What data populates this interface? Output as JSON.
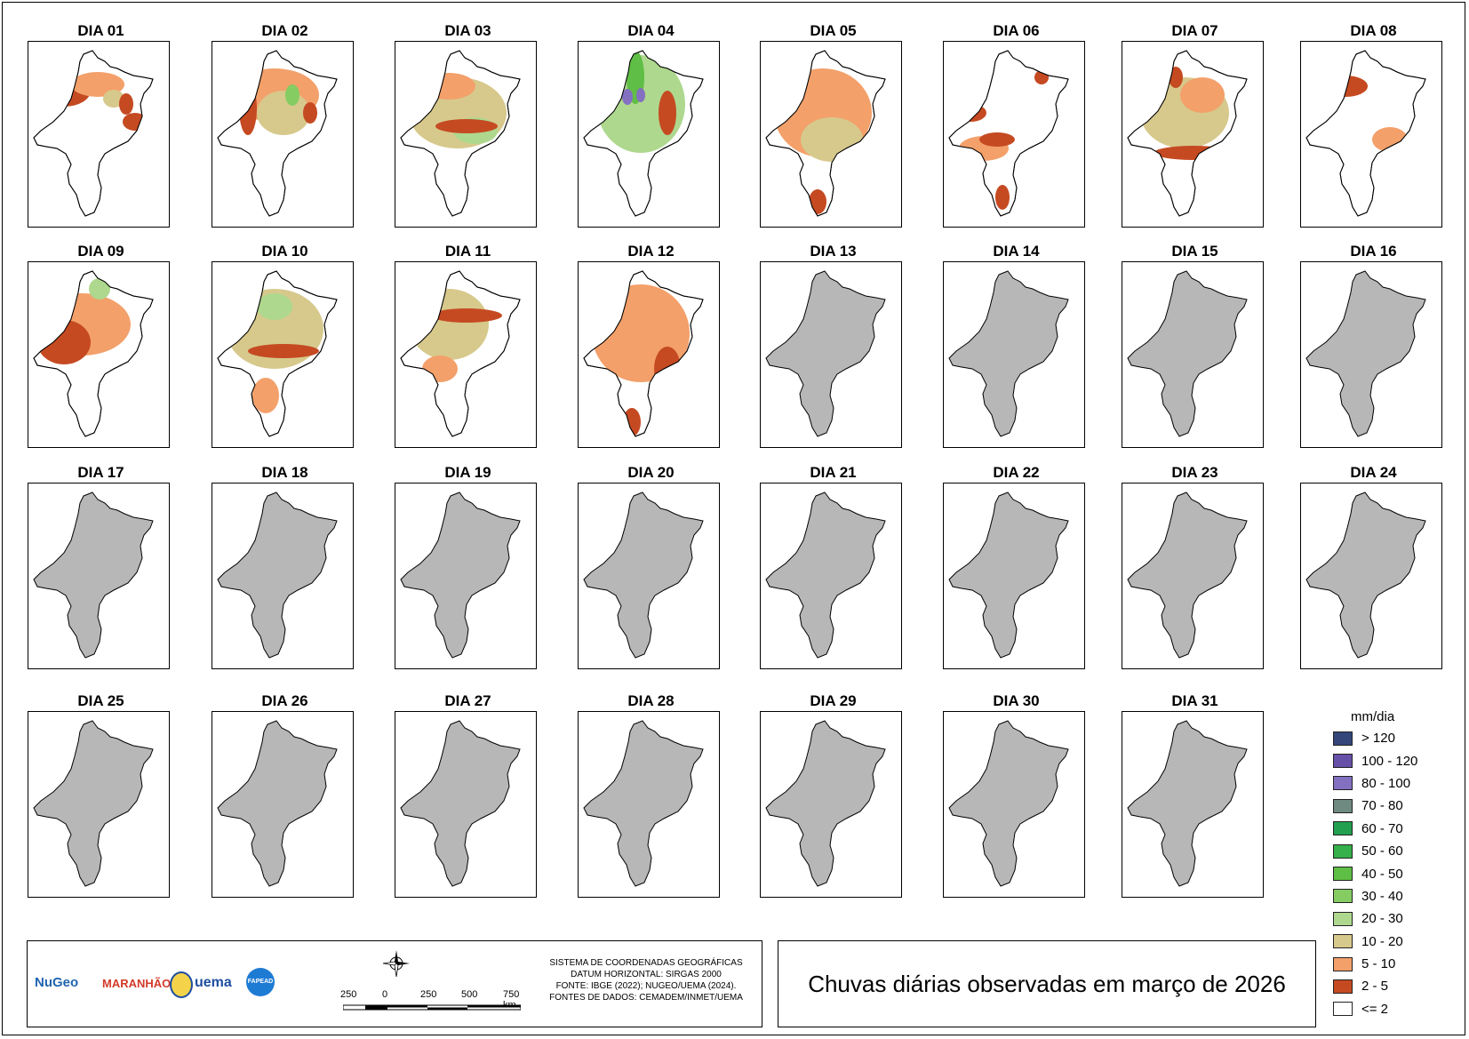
{
  "title": "Chuvas diárias observadas em março de 2026",
  "days": [
    "DIA 01",
    "DIA 02",
    "DIA 03",
    "DIA 04",
    "DIA 05",
    "DIA 06",
    "DIA 07",
    "DIA 08",
    "DIA 09",
    "DIA 10",
    "DIA 11",
    "DIA 12",
    "DIA 13",
    "DIA 14",
    "DIA 15",
    "DIA 16",
    "DIA 17",
    "DIA 18",
    "DIA 19",
    "DIA 20",
    "DIA 21",
    "DIA 22",
    "DIA 23",
    "DIA 24",
    "DIA 25",
    "DIA 26",
    "DIA 27",
    "DIA 28",
    "DIA 29",
    "DIA 30",
    "DIA 31"
  ],
  "observed_day_count": 12,
  "legend": {
    "unit": "mm/dia",
    "classes": [
      {
        "label": "> 120",
        "color": "#34467a"
      },
      {
        "label": "100 - 120",
        "color": "#6750a8"
      },
      {
        "label": "80 - 100",
        "color": "#8470c0"
      },
      {
        "label": "70 - 80",
        "color": "#6f8a80"
      },
      {
        "label": "60 - 70",
        "color": "#22a050"
      },
      {
        "label": "50 - 60",
        "color": "#35b04a"
      },
      {
        "label": "40 - 50",
        "color": "#5fbe45"
      },
      {
        "label": "30 - 40",
        "color": "#85cc63"
      },
      {
        "label": "20 - 30",
        "color": "#aed88e"
      },
      {
        "label": "10 - 20",
        "color": "#d7c98c"
      },
      {
        "label": "5 - 10",
        "color": "#f3a06a"
      },
      {
        "label": "2 - 5",
        "color": "#c54a22"
      },
      {
        "label": "<= 2",
        "color": "#ffffff"
      }
    ]
  },
  "no_data_color": "#b7b7b7",
  "credits": {
    "logos": [
      "NuGeo",
      "MARANHÃO",
      "uema",
      "FAPEAD"
    ],
    "specs": [
      "SISTEMA DE COORDENADAS GEOGRÁFICAS",
      "DATUM HORIZONTAL: SIRGAS 2000",
      "FONTE: IBGE (2022); NUGEO/UEMA (2024).",
      "FONTES DE DADOS: CEMADEM/INMET/UEMA"
    ],
    "scale_labels": [
      "250",
      "0",
      "250",
      "500",
      "750 km"
    ]
  }
}
